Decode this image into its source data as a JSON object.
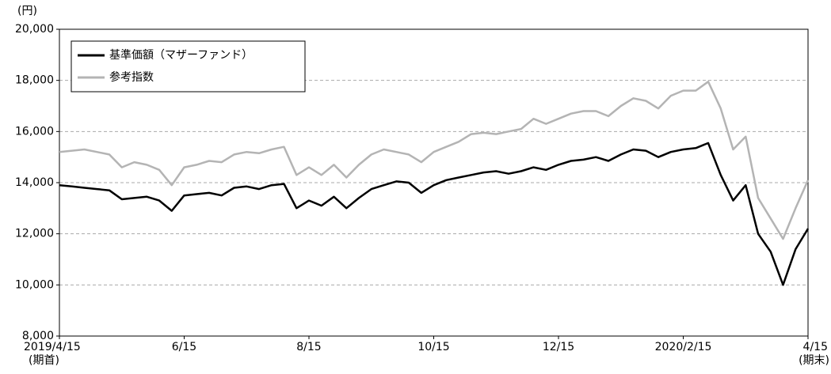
{
  "chart_data": {
    "type": "line",
    "y_unit": "(円)",
    "categories": [
      "2019/4/15",
      null,
      null,
      null,
      null,
      null,
      null,
      null,
      null,
      null,
      "6/15",
      null,
      null,
      null,
      null,
      null,
      null,
      null,
      null,
      null,
      "8/15",
      null,
      null,
      null,
      null,
      null,
      null,
      null,
      null,
      null,
      "10/15",
      null,
      null,
      null,
      null,
      null,
      null,
      null,
      null,
      null,
      "12/15",
      null,
      null,
      null,
      null,
      null,
      null,
      null,
      null,
      null,
      "2020/2/15",
      null,
      null,
      null,
      null,
      null,
      null,
      null,
      null,
      null,
      "4/15"
    ],
    "start_note": "(期首)",
    "end_note": "(期末)",
    "series": [
      {
        "name": "基準価額（マザーファンド）",
        "color": "#000000",
        "values": [
          13900,
          13850,
          13800,
          13750,
          13700,
          13350,
          13400,
          13450,
          13300,
          12900,
          13500,
          13550,
          13600,
          13500,
          13800,
          13850,
          13750,
          13900,
          13950,
          13000,
          13300,
          13100,
          13450,
          13000,
          13400,
          13750,
          13900,
          14050,
          14000,
          13600,
          13900,
          14100,
          14200,
          14300,
          14400,
          14450,
          14350,
          14450,
          14600,
          14500,
          14700,
          14850,
          14900,
          15000,
          14850,
          15100,
          15300,
          15250,
          15000,
          15200,
          15300,
          15350,
          15550,
          14300,
          13300,
          13900,
          12000,
          11300,
          10000,
          11400,
          12200
        ]
      },
      {
        "name": "参考指数",
        "color": "#b4b4b4",
        "values": [
          15200,
          15250,
          15300,
          15200,
          15100,
          14600,
          14800,
          14700,
          14500,
          13900,
          14600,
          14700,
          14850,
          14800,
          15100,
          15200,
          15150,
          15300,
          15400,
          14300,
          14600,
          14300,
          14700,
          14200,
          14700,
          15100,
          15300,
          15200,
          15100,
          14800,
          15200,
          15400,
          15600,
          15900,
          15950,
          15900,
          16000,
          16100,
          16500,
          16300,
          16500,
          16700,
          16800,
          16800,
          16600,
          17000,
          17300,
          17200,
          16900,
          17400,
          17600,
          17600,
          17950,
          16900,
          15300,
          15800,
          13400,
          12600,
          11800,
          13000,
          14100
        ]
      }
    ],
    "ylim": [
      8000,
      20000
    ],
    "yticks": [
      {
        "value": 8000,
        "label": "8,000"
      },
      {
        "value": 10000,
        "label": "10,000"
      },
      {
        "value": 12000,
        "label": "12,000"
      },
      {
        "value": 14000,
        "label": "14,000"
      },
      {
        "value": 16000,
        "label": "16,000"
      },
      {
        "value": 18000,
        "label": "18,000"
      },
      {
        "value": 20000,
        "label": "20,000"
      }
    ],
    "grid": true
  }
}
